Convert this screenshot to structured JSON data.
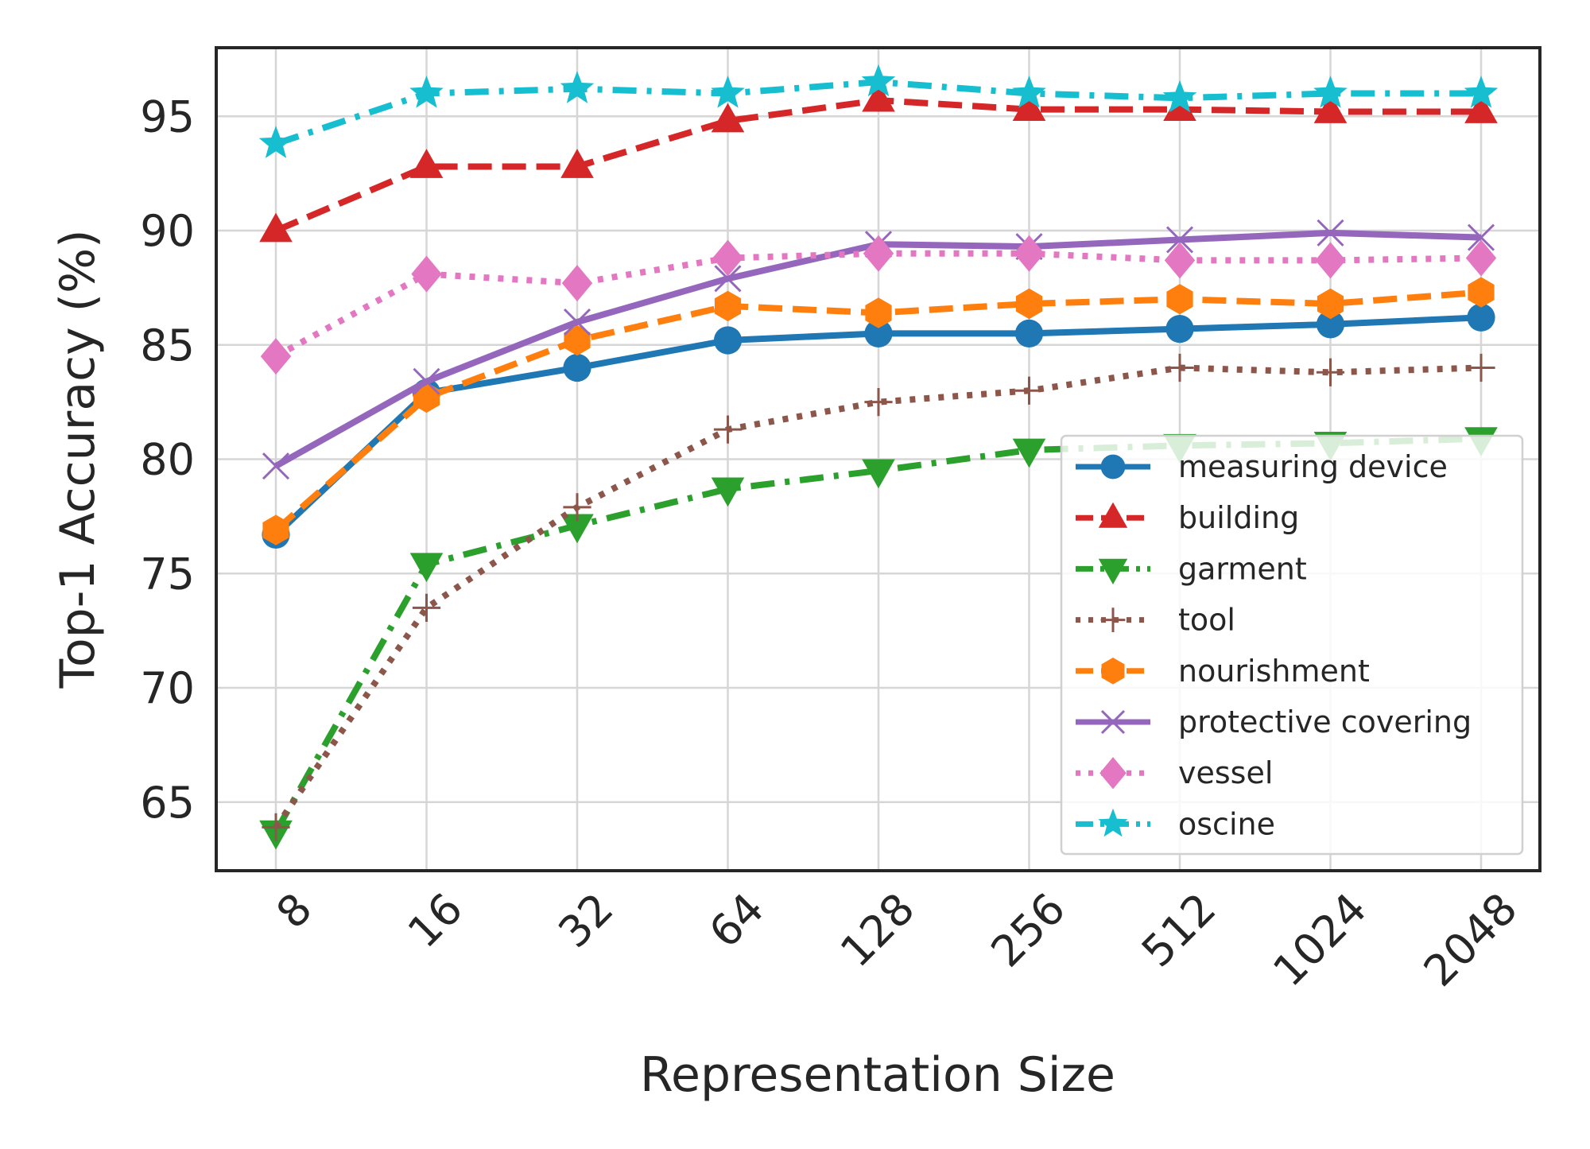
{
  "chart_data": {
    "type": "line",
    "xlabel": "Representation Size",
    "ylabel": "Top-1 Accuracy (%)",
    "categories": [
      "8",
      "16",
      "32",
      "64",
      "128",
      "256",
      "512",
      "1024",
      "2048"
    ],
    "ylim": [
      62,
      98
    ],
    "yticks": [
      65,
      70,
      75,
      80,
      85,
      90,
      95
    ],
    "grid": true,
    "legend_position": "lower-right",
    "series": [
      {
        "name": "measuring device",
        "color": "#1f77b4",
        "marker": "circle",
        "dash": "solid",
        "values": [
          76.7,
          82.9,
          84.0,
          85.2,
          85.5,
          85.5,
          85.7,
          85.9,
          86.2
        ]
      },
      {
        "name": "building",
        "color": "#d62728",
        "marker": "triangle-up",
        "dash": "dashed",
        "values": [
          90.0,
          92.8,
          92.8,
          94.8,
          95.7,
          95.3,
          95.3,
          95.2,
          95.2
        ]
      },
      {
        "name": "garment",
        "color": "#2ca02c",
        "marker": "triangle-down",
        "dash": "dashdot",
        "values": [
          63.7,
          75.4,
          77.1,
          78.7,
          79.5,
          80.4,
          80.6,
          80.7,
          80.9
        ]
      },
      {
        "name": "tool",
        "color": "#8c564b",
        "marker": "plus",
        "dash": "dotted",
        "values": [
          63.9,
          73.5,
          77.9,
          81.3,
          82.5,
          83.0,
          84.0,
          83.8,
          84.0
        ]
      },
      {
        "name": "nourishment",
        "color": "#ff7f0e",
        "marker": "hexagon",
        "dash": "dashed",
        "values": [
          76.9,
          82.7,
          85.2,
          86.7,
          86.4,
          86.8,
          87.0,
          86.8,
          87.3
        ]
      },
      {
        "name": "protective covering",
        "color": "#9467bd",
        "marker": "x",
        "dash": "solid",
        "values": [
          79.7,
          83.4,
          86.0,
          87.9,
          89.4,
          89.3,
          89.6,
          89.9,
          89.7
        ]
      },
      {
        "name": "vessel",
        "color": "#e377c2",
        "marker": "diamond",
        "dash": "dotted",
        "values": [
          84.5,
          88.1,
          87.7,
          88.8,
          89.0,
          89.0,
          88.7,
          88.7,
          88.8
        ]
      },
      {
        "name": "oscine",
        "color": "#17becf",
        "marker": "star",
        "dash": "dashdot",
        "values": [
          93.8,
          96.0,
          96.2,
          96.0,
          96.5,
          96.0,
          95.8,
          96.0,
          96.0
        ]
      }
    ]
  }
}
